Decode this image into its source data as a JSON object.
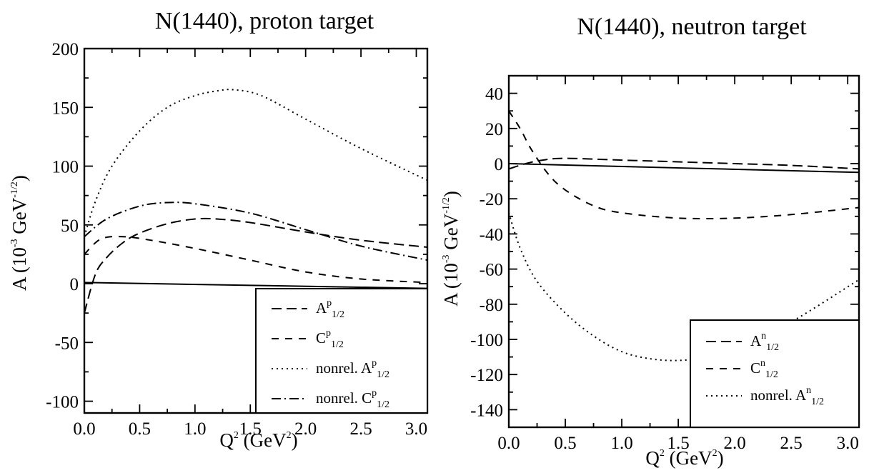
{
  "chart_data": [
    {
      "type": "line",
      "title": "N(1440), proton target",
      "xlabel": "Q",
      "xlabel_sup": "2",
      "xlabel_unit": " (GeV",
      "xlabel_unit_sup": "2",
      "xlabel_close": ")",
      "ylabel": "A (10",
      "ylabel_sup": "-3",
      "ylabel_mid": " GeV",
      "ylabel_sup2": "-1/2",
      "ylabel_close": ")",
      "xlim": [
        0.0,
        3.1
      ],
      "ylim": [
        -110,
        200
      ],
      "xticks": [
        "0.0",
        "0.5",
        "1.0",
        "1.5",
        "2.0",
        "2.5",
        "3.0"
      ],
      "xtick_values": [
        0.0,
        0.5,
        1.0,
        1.5,
        2.0,
        2.5,
        3.0
      ],
      "yticks": [
        "-100",
        "-50",
        "0",
        "50",
        "100",
        "150",
        "200"
      ],
      "ytick_values": [
        -100,
        -50,
        0,
        50,
        100,
        150,
        200
      ],
      "legend_position": "bottom-right",
      "series": [
        {
          "name": "A",
          "sup": "p",
          "sub": "1/2",
          "style": "long-dash",
          "x": [
            0.0,
            0.1,
            0.2,
            0.35,
            0.5,
            0.75,
            1.0,
            1.2,
            1.5,
            2.0,
            2.5,
            3.1
          ],
          "y": [
            -25,
            8,
            22,
            35,
            43,
            51,
            55,
            55,
            52,
            44,
            37,
            31
          ]
        },
        {
          "name": "C",
          "sup": "p",
          "sub": "1/2",
          "style": "short-dash",
          "x": [
            0.0,
            0.15,
            0.35,
            0.6,
            1.0,
            1.5,
            2.0,
            2.5,
            3.1
          ],
          "y": [
            25,
            38,
            40,
            37,
            30,
            20,
            10,
            4,
            1
          ]
        },
        {
          "name": "nonrel. A",
          "sup": "p",
          "sub": "1/2",
          "style": "dotted",
          "x": [
            0.0,
            0.1,
            0.25,
            0.5,
            0.75,
            1.0,
            1.2,
            1.35,
            1.6,
            2.0,
            2.5,
            3.1
          ],
          "y": [
            40,
            70,
            100,
            130,
            150,
            160,
            164,
            165,
            160,
            140,
            115,
            88
          ]
        },
        {
          "name": "nonrel. C",
          "sup": "p",
          "sub": "1/2",
          "style": "dash-dot",
          "x": [
            0.0,
            0.2,
            0.5,
            0.75,
            1.0,
            1.5,
            2.0,
            2.5,
            3.1
          ],
          "y": [
            40,
            55,
            66,
            69,
            68,
            60,
            46,
            32,
            20
          ]
        },
        {
          "name": "",
          "style": "solid",
          "x": [
            0.0,
            3.1
          ],
          "y": [
            1,
            -4
          ]
        }
      ]
    },
    {
      "type": "line",
      "title": "N(1440), neutron target",
      "xlabel": "Q",
      "xlabel_sup": "2",
      "xlabel_unit": " (GeV",
      "xlabel_unit_sup": "2",
      "xlabel_close": ")",
      "ylabel": "A (10",
      "ylabel_sup": "-3",
      "ylabel_mid": " GeV",
      "ylabel_sup2": "-1/2",
      "ylabel_close": ")",
      "xlim": [
        0.0,
        3.1
      ],
      "ylim": [
        -150,
        50
      ],
      "xticks": [
        "0.0",
        "0.5",
        "1.0",
        "1.5",
        "2.0",
        "2.5",
        "3.0"
      ],
      "xtick_values": [
        0.0,
        0.5,
        1.0,
        1.5,
        2.0,
        2.5,
        3.0
      ],
      "yticks": [
        "-140",
        "-120",
        "-100",
        "-80",
        "-60",
        "-40",
        "-20",
        "0",
        "20",
        "40"
      ],
      "ytick_values": [
        -140,
        -120,
        -100,
        -80,
        -60,
        -40,
        -20,
        0,
        20,
        40
      ],
      "legend_position": "bottom-right",
      "series": [
        {
          "name": "A",
          "sup": "n",
          "sub": "1/2",
          "style": "long-dash",
          "x": [
            0.0,
            0.15,
            0.3,
            0.5,
            1.0,
            1.5,
            2.0,
            2.5,
            3.1
          ],
          "y": [
            -3,
            0,
            2,
            3,
            2,
            1,
            0,
            -1,
            -3
          ]
        },
        {
          "name": "C",
          "sup": "n",
          "sub": "1/2",
          "style": "short-dash",
          "x": [
            0.0,
            0.1,
            0.2,
            0.35,
            0.5,
            0.75,
            1.0,
            1.5,
            2.0,
            2.5,
            3.1
          ],
          "y": [
            30,
            20,
            8,
            -6,
            -15,
            -24,
            -28,
            -31,
            -31,
            -29,
            -25
          ]
        },
        {
          "name": "nonrel. A",
          "sup": "n",
          "sub": "1/2",
          "style": "dotted",
          "x": [
            0.0,
            0.1,
            0.25,
            0.5,
            0.75,
            1.0,
            1.25,
            1.5,
            1.75,
            2.0,
            2.5,
            3.1
          ],
          "y": [
            -28,
            -48,
            -67,
            -85,
            -98,
            -107,
            -111,
            -112,
            -110,
            -105,
            -90,
            -66
          ]
        },
        {
          "name": "",
          "style": "solid",
          "x": [
            0.0,
            3.1
          ],
          "y": [
            0,
            -5
          ]
        }
      ]
    }
  ]
}
